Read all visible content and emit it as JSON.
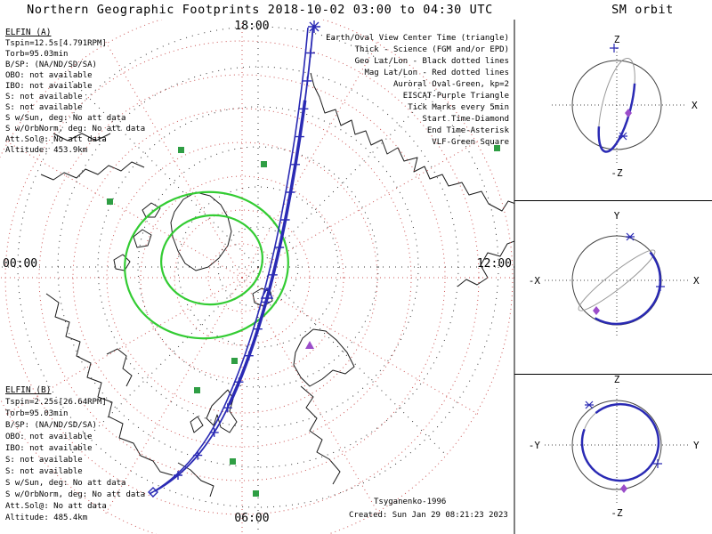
{
  "title": "Northern Geographic Footprints 2018-10-02 03:00 to 04:30 UTC",
  "colors": {
    "track": "#2a2ab4",
    "geo_grid": "#333333",
    "mag_grid": "#cc5555",
    "oval_green": "#33cc33",
    "vlf_green": "#2f9e44",
    "purple": "#9b4dca",
    "elfin_a": "#008b8b",
    "elfin_b": "#ee3311",
    "orbit_gray": "#999999"
  },
  "map": {
    "clock_labels": {
      "top": "18:00",
      "left": "00:00",
      "right": "12:00",
      "bottom": "06:00"
    },
    "legend": [
      {
        "text": "Earth/Oval View Center Time (triangle)",
        "color": "#000000"
      },
      {
        "text": "Thick - Science (FGM and/or EPD)",
        "color": "#000000"
      },
      {
        "text": "Geo Lat/Lon - Black dotted lines",
        "color": "#000000"
      },
      {
        "text": "Mag Lat/Lon - Red dotted lines",
        "color": "#cc2222"
      },
      {
        "text": "Auroral Oval-Green, kp=2",
        "color": "#22aa22"
      },
      {
        "text": "EISCAT-Purple Triangle",
        "color": "#9b4dca"
      },
      {
        "text": "Tick Marks every 5min",
        "color": "#000000"
      },
      {
        "text": "Start Time-Diamond",
        "color": "#000000"
      },
      {
        "text": "End Time-Asterisk",
        "color": "#000000"
      },
      {
        "text": "VLF-Green Square",
        "color": "#22aa22"
      }
    ],
    "credit": {
      "model": "Tsyganenko-1996",
      "created": "Created: Sun Jan 29 08:21:23 2023"
    }
  },
  "elfin_a": {
    "name": "ELFIN (A)",
    "lines": [
      "Tspin=12.5s[4.791RPM]",
      "Torb=95.03min",
      "B/SP: (NA/ND/SD/SA)",
      "OBO: not available",
      "IBO: not available",
      "S: not available",
      "S: not available",
      "S w/Sun, deg: No att data",
      "S w/OrbNorm, deg: No att data",
      "Att.Sol@: No att data",
      "Altitude: 453.9km"
    ]
  },
  "elfin_b": {
    "name": "ELFIN (B)",
    "lines": [
      "Tspin=2.25s[26.64RPM]",
      "Torb=95.03min",
      "B/SP: (NA/ND/SD/SA)",
      "OBO: not available",
      "IBO: not available",
      "S: not available",
      "S: not available",
      "S w/Sun, deg: No att data",
      "S w/OrbNorm, deg: No att data",
      "Att.Sol@: No att data",
      "Altitude: 485.4km"
    ]
  },
  "sm_orbit": {
    "title": "SM orbit",
    "plots": [
      {
        "up": "Z",
        "down": "-Z",
        "right": "X"
      },
      {
        "up": "Y",
        "right": "X",
        "left": "-X"
      },
      {
        "up": "Z",
        "down": "-Z",
        "right": "Y",
        "left": "-Y"
      }
    ]
  },
  "chart_data": [
    {
      "type": "line",
      "subtype": "polar-map-satellite-footprint",
      "title": "Northern Geographic Footprints 2018-10-02 03:00 to 04:30 UTC",
      "date": "2018-10-02",
      "time_range_utc": [
        "03:00",
        "04:30"
      ],
      "projection": "north polar, local-time clock oriented (18:00 top, 00:00 left, 12:00 right, 06:00 bottom)",
      "tick_interval_min": 5,
      "series": [
        {
          "name": "ELFIN (A) footprint",
          "color": "#2a2ab4",
          "thick_means": "Science (FGM and/or EPD)"
        },
        {
          "name": "ELFIN (B) footprint",
          "color": "#2a2ab4"
        }
      ],
      "markers": {
        "start_time": "diamond",
        "end_time": "asterisk",
        "view_center_time": "triangle"
      },
      "overlays": [
        {
          "name": "Geographic lat/lon grid",
          "style": "black dotted lines"
        },
        {
          "name": "Magnetic lat/lon grid",
          "style": "red dotted lines"
        },
        {
          "name": "Auroral oval",
          "style": "green, kp=2"
        },
        {
          "name": "EISCAT site",
          "style": "purple triangle"
        },
        {
          "name": "VLF stations",
          "style": "green squares"
        }
      ],
      "field_model": "Tsyganenko-1996"
    },
    {
      "type": "scatter",
      "subtype": "orbit-plane-projections",
      "title": "SM orbit",
      "panels": [
        {
          "plane": "X-Z",
          "axes": {
            "up": "Z",
            "down": "-Z",
            "right": "X"
          }
        },
        {
          "plane": "X-Y",
          "axes": {
            "up": "Y",
            "right": "X",
            "left": "-X"
          }
        },
        {
          "plane": "Y-Z",
          "axes": {
            "up": "Z",
            "down": "-Z",
            "right": "Y",
            "left": "-Y"
          }
        }
      ],
      "elements": [
        "Earth disk circle",
        "blue orbit track",
        "gray full-orbit ellipse",
        "start/end markers"
      ]
    }
  ]
}
